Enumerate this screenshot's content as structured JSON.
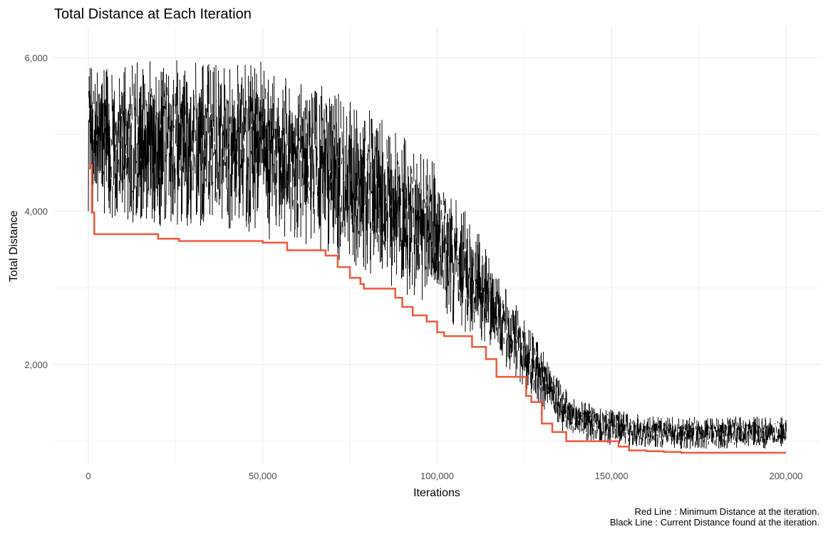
{
  "chart_data": {
    "type": "line",
    "title": "Total Distance at Each Iteration",
    "xlabel": "Iterations",
    "ylabel": "Total Distance",
    "xlim": [
      -10000,
      210000
    ],
    "ylim": [
      700,
      6400
    ],
    "x_ticks": [
      0,
      50000,
      100000,
      150000,
      200000
    ],
    "x_tick_labels": [
      "0",
      "50,000",
      "100,000",
      "150,000",
      "200,000"
    ],
    "x_minor_ticks": [
      25000,
      75000,
      125000,
      175000
    ],
    "y_ticks": [
      2000,
      4000,
      6000
    ],
    "y_tick_labels": [
      "2,000",
      "4,000",
      "6,000"
    ],
    "y_minor_ticks": [
      1000,
      3000,
      5000
    ],
    "grid": true,
    "caption_lines": [
      "Red Line : Minimum Distance at the iteration.",
      "Black Line : Current Distance found at the iteration."
    ],
    "colors": {
      "min_line": "#f0593e",
      "current_line": "#000000"
    },
    "series": [
      {
        "key": "minimum",
        "step": true,
        "x": [
          0,
          1000,
          1700,
          20000,
          26000,
          50000,
          57000,
          68000,
          71500,
          75000,
          78000,
          79000,
          88000,
          90000,
          93000,
          97000,
          100000,
          102000,
          110000,
          114000,
          117000,
          125500,
          127000,
          130000,
          133000,
          137000,
          152000,
          155000,
          160000,
          165000,
          170000,
          200000
        ],
        "values": [
          4600,
          3980,
          3700,
          3640,
          3610,
          3590,
          3490,
          3420,
          3270,
          3130,
          3050,
          2990,
          2870,
          2750,
          2640,
          2560,
          2420,
          2370,
          2230,
          2070,
          1840,
          1590,
          1510,
          1230,
          1120,
          1000,
          930,
          880,
          870,
          860,
          850,
          850
        ]
      },
      {
        "key": "current",
        "band": true,
        "x": [
          0,
          5000,
          10000,
          20000,
          30000,
          40000,
          50000,
          55000,
          60000,
          65000,
          70000,
          75000,
          80000,
          85000,
          90000,
          95000,
          100000,
          105000,
          110000,
          115000,
          120000,
          125000,
          130000,
          135000,
          140000,
          150000,
          160000,
          170000,
          180000,
          190000,
          200000
        ],
        "low": [
          4000,
          3900,
          3850,
          3800,
          3780,
          3760,
          3650,
          3600,
          3550,
          3500,
          3400,
          3300,
          3150,
          3050,
          2950,
          2800,
          2650,
          2500,
          2350,
          2150,
          1950,
          1700,
          1450,
          1150,
          1000,
          950,
          920,
          900,
          900,
          900,
          900
        ],
        "high": [
          5900,
          5850,
          5900,
          6000,
          5950,
          5950,
          6000,
          5800,
          5700,
          5650,
          5600,
          5500,
          5400,
          5200,
          5000,
          4800,
          4600,
          4200,
          3900,
          3400,
          3000,
          2600,
          2200,
          1800,
          1550,
          1420,
          1340,
          1320,
          1320,
          1320,
          1330
        ]
      }
    ]
  }
}
